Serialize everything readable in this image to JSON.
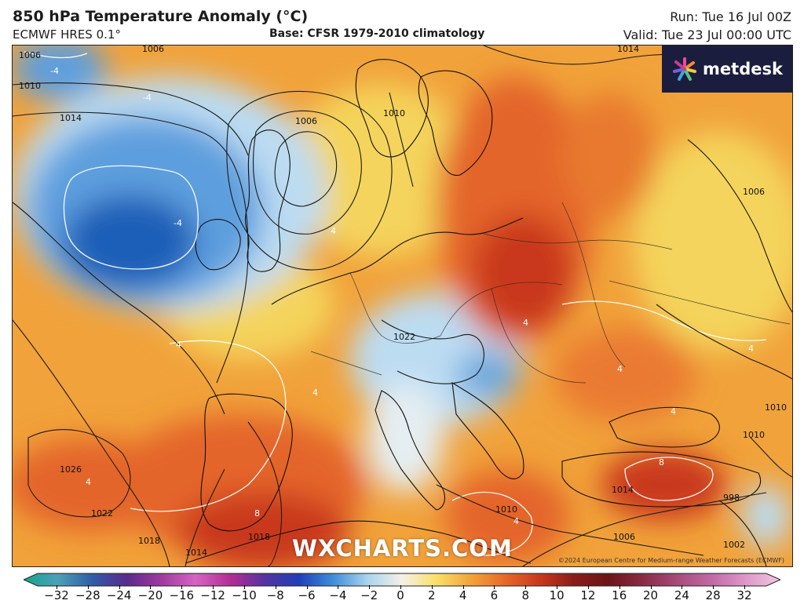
{
  "header": {
    "title": "850 hPa Temperature Anomaly (°C)",
    "model": "ECMWF HRES 0.1°",
    "base": "Base: CFSR 1979-2010 climatology",
    "run": "Run: Tue 16 Jul 00Z",
    "valid": "Valid: Tue 23 Jul 00:00 UTC"
  },
  "map": {
    "logo_text": "metdesk",
    "watermark": "WXCHARTS.COM",
    "copyright": "©2024 European Centre for Medium-range Weather Forecasts (ECMWF)",
    "isobar_labels": [
      "1006",
      "1006",
      "1010",
      "1014",
      "1006",
      "1010",
      "1014",
      "1006",
      "1026",
      "1022",
      "1018",
      "1014",
      "1018",
      "1010",
      "1006",
      "1002",
      "998",
      "1010",
      "1010",
      "1022",
      "1014"
    ],
    "anomaly_labels": [
      "-4",
      "-4",
      "-4",
      "4",
      "4",
      "4",
      "4",
      "4",
      "4",
      "4",
      "8",
      "8",
      "4",
      "4"
    ],
    "colors": {
      "strong_cold": "#1c5fb8",
      "cold": "#5d9fde",
      "cool": "#bcdcf2",
      "neutral": "#f3f1e4",
      "mild": "#f4d45c",
      "warm": "#f1a23a",
      "hot": "#e4652a",
      "very_hot": "#c9391c",
      "extreme": "#a51f1a",
      "isobar": "#1b1b1b",
      "anomaly_contour": "#ffffff",
      "coastline": "#111111"
    }
  },
  "colorbar": {
    "ticks": [
      "−32",
      "−28",
      "−24",
      "−20",
      "−16",
      "−12",
      "−10",
      "−8",
      "−6",
      "−4",
      "−2",
      "0",
      "2",
      "4",
      "6",
      "8",
      "10",
      "12",
      "16",
      "20",
      "24",
      "28",
      "32"
    ],
    "stops": [
      "#14a58b",
      "#4e9fb8",
      "#2f5da6",
      "#5a2a8d",
      "#a03a9e",
      "#d664c4",
      "#b42e93",
      "#5533a0",
      "#1f3fb8",
      "#3f8ed8",
      "#a9d4f0",
      "#f4f1e6",
      "#f8e06a",
      "#f2a43a",
      "#e6692a",
      "#c8391b",
      "#8b1c1a",
      "#6b1616",
      "#8a2b46",
      "#a64b7a",
      "#c26aa6",
      "#de98c9",
      "#f1c7de"
    ]
  }
}
